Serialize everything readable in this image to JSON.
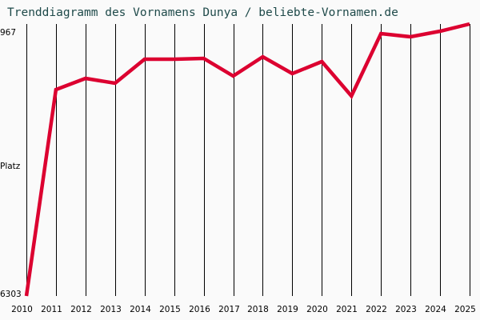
{
  "title": "Trenddiagramm des Vornamens Dunya / beliebte-Vornamen.de",
  "y_axis": {
    "top_label": "967",
    "mid_label": "Platz",
    "bottom_label": "6303"
  },
  "colors": {
    "line": "#dc0030",
    "grid": "#000000",
    "title": "#1f4a4a",
    "background": "#fafafa"
  },
  "chart_data": {
    "type": "line",
    "title": "Trenddiagramm des Vornamens Dunya / beliebte-Vornamen.de",
    "xlabel": "",
    "ylabel": "Platz",
    "ylim": [
      6303,
      967
    ],
    "y_inverted": true,
    "grid": {
      "vertical": true,
      "horizontal": false
    },
    "legend": null,
    "categories": [
      "2010",
      "2011",
      "2012",
      "2013",
      "2014",
      "2015",
      "2016",
      "2017",
      "2018",
      "2019",
      "2020",
      "2021",
      "2022",
      "2023",
      "2024",
      "2025"
    ],
    "series": [
      {
        "name": "Dunya",
        "values": [
          6303,
          2254,
          2034,
          2128,
          1657,
          1657,
          1642,
          1987,
          1610,
          1940,
          1704,
          2379,
          1155,
          1218,
          1108,
          967
        ]
      }
    ]
  }
}
